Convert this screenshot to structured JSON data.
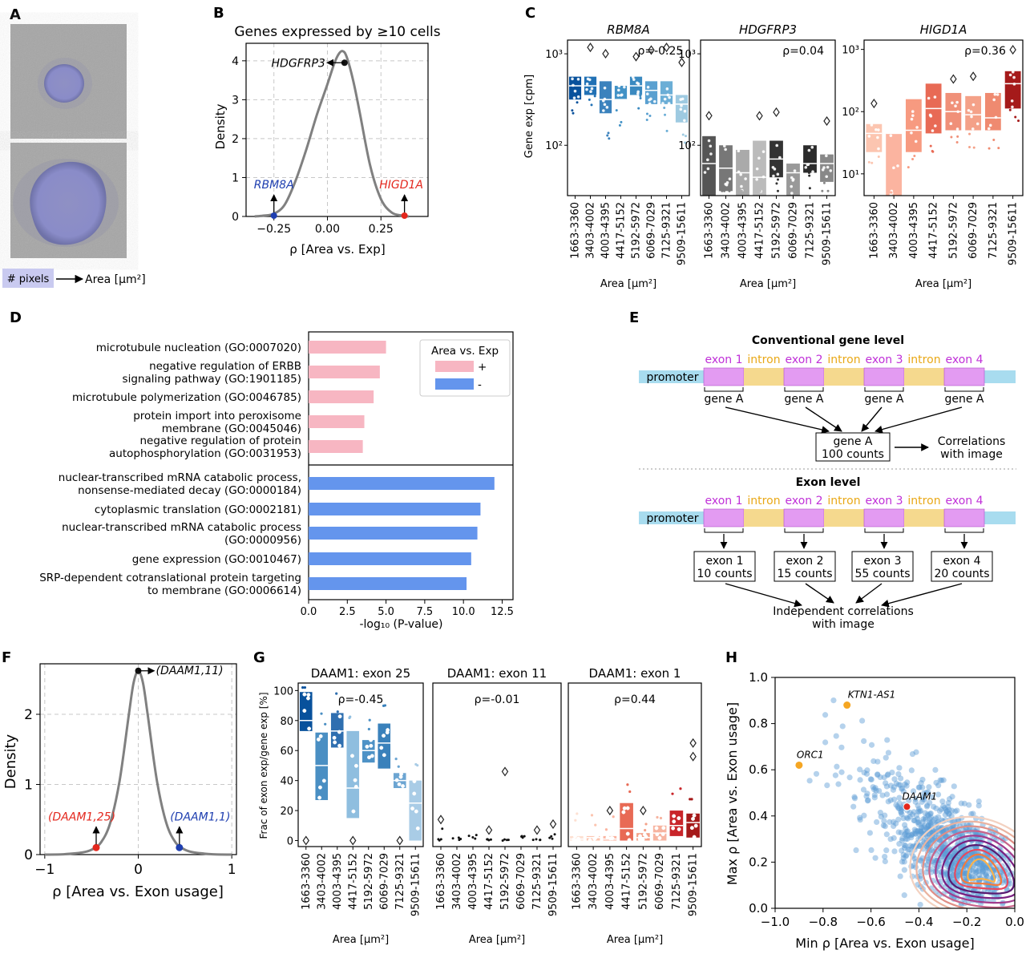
{
  "panel_labels": [
    "A",
    "B",
    "C",
    "D",
    "E",
    "F",
    "G",
    "H"
  ],
  "colors": {
    "rbm_blue": "#1f3fb0",
    "higd_red": "#e3271d",
    "pos_pink": "#f7b6c2",
    "neg_blue": "#6495ed",
    "exon_violet": "#e39bf2",
    "intron_yellow": "#f5d98e",
    "promoter_blue": "#a8dcef",
    "exon_label": "#c030d8",
    "intron_label": "#e9a817",
    "orange": "#f5a623"
  },
  "panel_a": {
    "legend_box": "# pixels",
    "legend_arrow_text": "Area [µm²]"
  },
  "panel_b": {
    "chart_data": {
      "type": "line",
      "title": "Genes expressed by ≥10 cells",
      "xlabel": "ρ [Area vs. Exp]",
      "ylabel": "Density",
      "xlim": [
        -0.38,
        0.47
      ],
      "ylim": [
        0,
        4.45
      ],
      "xticks": [
        -0.25,
        0.0,
        0.25
      ],
      "xtick_labels": [
        "−0.25",
        "0.00",
        "0.25"
      ],
      "yticks": [
        0,
        1,
        2,
        3,
        4
      ],
      "grid": true,
      "x": [
        -0.34,
        -0.3,
        -0.25,
        -0.2,
        -0.15,
        -0.1,
        -0.05,
        0.0,
        0.03,
        0.05,
        0.07,
        0.09,
        0.12,
        0.15,
        0.2,
        0.25,
        0.3,
        0.35,
        0.38
      ],
      "y": [
        0.0,
        0.02,
        0.07,
        0.3,
        0.9,
        1.7,
        2.6,
        3.4,
        3.9,
        4.15,
        4.25,
        4.1,
        3.5,
        2.7,
        1.3,
        0.45,
        0.1,
        0.02,
        0.0
      ],
      "annotations": [
        {
          "label": "HDGFRP3",
          "x": 0.05,
          "y": 3.95,
          "color": "#000000"
        },
        {
          "label": "RBM8A",
          "x": -0.25,
          "y": 0.0,
          "color": "#1f3fb0"
        },
        {
          "label": "HIGD1A",
          "x": 0.36,
          "y": 0.0,
          "color": "#e3271d"
        }
      ]
    }
  },
  "panel_c": {
    "ylabel": "Gene exp [cpm]",
    "xlabel": "Area [µm²]",
    "categories": [
      "1663-3360",
      "3403-4002",
      "4003-4395",
      "4417-5152",
      "5192-5972",
      "6069-7029",
      "7125-9321",
      "9509-15611"
    ],
    "ytick_labels": [
      "10¹",
      "10²",
      "10³"
    ],
    "chart_data": [
      {
        "type": "bar",
        "title": "RBM8A",
        "rho": "ρ=-0.25",
        "ylim_log": [
          1.45,
          3.15
        ],
        "lo": [
          2.5,
          2.55,
          2.35,
          2.5,
          2.55,
          2.45,
          2.45,
          2.25
        ],
        "hi": [
          2.75,
          2.75,
          2.7,
          2.65,
          2.75,
          2.7,
          2.7,
          2.55
        ],
        "median": [
          2.65,
          2.65,
          2.5,
          2.5,
          2.65,
          2.6,
          2.55,
          2.45
        ],
        "colors": [
          "#08519c",
          "#2171b5",
          "#3b82bd",
          "#4292c6",
          "#3a89c0",
          "#5aa0d0",
          "#6baed6",
          "#9ecae1"
        ]
      },
      {
        "type": "bar",
        "title": "HDGFRP3",
        "rho": "ρ=0.04",
        "ylim_log": [
          1.45,
          3.15
        ],
        "lo": [
          1.3,
          1.5,
          0.0,
          0.95,
          1.65,
          1.45,
          1.7,
          1.6
        ],
        "hi": [
          2.1,
          2.0,
          1.95,
          2.05,
          2.05,
          1.8,
          2.0,
          1.9
        ],
        "median": [
          1.8,
          1.75,
          1.7,
          1.65,
          1.85,
          1.7,
          1.8,
          1.8
        ],
        "colors": [
          "#555555",
          "#777777",
          "#aaaaaa",
          "#bbbbbb",
          "#333333",
          "#999999",
          "#2b2b2b",
          "#888888"
        ]
      },
      {
        "type": "bar",
        "title": "HIGD1A",
        "rho": "ρ=0.36",
        "ylim_log": [
          0.65,
          3.15
        ],
        "lo": [
          1.35,
          0.0,
          1.35,
          1.65,
          1.7,
          1.7,
          1.7,
          2.05
        ],
        "hi": [
          1.8,
          1.65,
          2.2,
          2.45,
          2.3,
          2.25,
          2.3,
          2.65
        ],
        "median": [
          1.65,
          1.65,
          1.7,
          2.05,
          2.0,
          1.95,
          1.9,
          2.45
        ],
        "colors": [
          "#fcc5b0",
          "#fbb4a0",
          "#f79a80",
          "#e86a55",
          "#f09079",
          "#f4a188",
          "#ef8a70",
          "#a51a1a"
        ]
      }
    ]
  },
  "panel_d": {
    "chart_data": {
      "type": "bar",
      "orientation": "horizontal",
      "xlabel": "-log₁₀ (P-value)",
      "xlim": [
        0,
        13.2
      ],
      "xticks": [
        0.0,
        2.5,
        5.0,
        7.5,
        10.0,
        12.5
      ],
      "xtick_labels": [
        "0.0",
        "2.5",
        "5.0",
        "7.5",
        "10.0",
        "12.5"
      ],
      "legend_title": "Area vs. Exp",
      "legend": [
        "+",
        "-"
      ],
      "positive": [
        {
          "label": [
            "microtubule nucleation (GO:0007020)"
          ],
          "value": 5.0
        },
        {
          "label": [
            "negative regulation of ERBB",
            "signaling pathway (GO:1901185)"
          ],
          "value": 4.6
        },
        {
          "label": [
            "microtubule polymerization (GO:0046785)"
          ],
          "value": 4.2
        },
        {
          "label": [
            "protein import into peroxisome",
            "membrane (GO:0045046)"
          ],
          "value": 3.6
        },
        {
          "label": [
            "negative regulation of protein",
            "autophosphorylation (GO:0031953)"
          ],
          "value": 3.5
        }
      ],
      "negative": [
        {
          "label": [
            "nuclear-transcribed mRNA catabolic process,",
            "nonsense-mediated decay (GO:0000184)"
          ],
          "value": 12.0
        },
        {
          "label": [
            "cytoplasmic translation (GO:0002181)"
          ],
          "value": 11.1
        },
        {
          "label": [
            "nuclear-transcribed mRNA catabolic process",
            "(GO:0000956)"
          ],
          "value": 10.9
        },
        {
          "label": [
            "gene expression (GO:0010467)"
          ],
          "value": 10.5
        },
        {
          "label": [
            "SRP-dependent cotranslational protein targeting",
            "to membrane (GO:0006614)"
          ],
          "value": 10.2
        }
      ]
    }
  },
  "panel_e": {
    "title_gene": "Conventional gene level",
    "title_exon": "Exon level",
    "promoter": "promoter",
    "exons": [
      "exon 1",
      "exon 2",
      "exon 3",
      "exon 4"
    ],
    "intron": "intron",
    "gene_label": "gene A",
    "gene_box": [
      "gene A",
      "100 counts"
    ],
    "gene_corr": [
      "Correlations",
      "with image"
    ],
    "exon_boxes": [
      [
        "exon 1",
        "10 counts"
      ],
      [
        "exon 2",
        "15 counts"
      ],
      [
        "exon 3",
        "55 counts"
      ],
      [
        "exon 4",
        "20 counts"
      ]
    ],
    "exon_corr": [
      "Independent correlations",
      "with image"
    ]
  },
  "panel_f": {
    "chart_data": {
      "type": "line",
      "xlabel": "ρ [Area vs. Exon usage]",
      "ylabel": "Density",
      "xlim": [
        -1.05,
        1.05
      ],
      "ylim": [
        0,
        2.72
      ],
      "xticks": [
        -1,
        0,
        1
      ],
      "xtick_labels": [
        "−1",
        "0",
        "1"
      ],
      "yticks": [
        0,
        1,
        2
      ],
      "grid": true,
      "x": [
        -1.0,
        -0.8,
        -0.6,
        -0.5,
        -0.4,
        -0.3,
        -0.2,
        -0.1,
        -0.05,
        0.0,
        0.05,
        0.1,
        0.2,
        0.3,
        0.4,
        0.5,
        0.6,
        0.8,
        1.0
      ],
      "y": [
        0.0,
        0.005,
        0.03,
        0.07,
        0.17,
        0.45,
        1.05,
        2.0,
        2.45,
        2.62,
        2.45,
        2.0,
        1.05,
        0.45,
        0.17,
        0.07,
        0.03,
        0.005,
        0.0
      ],
      "annotations": [
        {
          "label": "(DAAM1,11)",
          "x": 0.0,
          "y": 2.62,
          "color": "#000000"
        },
        {
          "label": "(DAAM1,25)",
          "x": -0.45,
          "y": 0.1,
          "color": "#e3271d"
        },
        {
          "label": "(DAAM1,1)",
          "x": 0.44,
          "y": 0.1,
          "color": "#1f3fb0"
        }
      ]
    }
  },
  "panel_g": {
    "ylabel": "Frac of exon exp/gene exp [%]",
    "xlabel": "Area [µm²]",
    "categories": [
      "1663-3360",
      "3403-4002",
      "4003-4395",
      "4417-5152",
      "5192-5972",
      "6069-7029",
      "7125-9321",
      "9509-15611"
    ],
    "yticks": [
      0,
      20,
      40,
      60,
      80,
      100
    ],
    "chart_data": [
      {
        "type": "bar",
        "title": "DAAM1: exon 25",
        "rho": "ρ=-0.45",
        "ylim": [
          -4,
          105
        ],
        "lo": [
          73,
          27,
          62,
          15,
          52,
          48,
          35,
          0
        ],
        "hi": [
          99,
          72,
          85,
          73,
          67,
          78,
          45,
          40
        ],
        "median": [
          80,
          50,
          73,
          35,
          60,
          65,
          40,
          25
        ],
        "colors": [
          "#08519c",
          "#4a8fc3",
          "#2f6fb0",
          "#8fbedf",
          "#4e92c6",
          "#3a81bb",
          "#6ca5d2",
          "#a9cce6"
        ]
      },
      {
        "type": "bar",
        "title": "DAAM1: exon 11",
        "rho": "ρ=-0.01",
        "ylim": [
          -4,
          105
        ],
        "lo": [
          0,
          0,
          0,
          0,
          0,
          0,
          0,
          0
        ],
        "hi": [
          0,
          0,
          0,
          0,
          0,
          0,
          0,
          0
        ],
        "median": [
          8,
          2,
          4,
          1,
          1,
          3,
          1,
          5
        ],
        "colors": [
          "#000000",
          "#000000",
          "#000000",
          "#000000",
          "#000000",
          "#000000",
          "#000000",
          "#000000"
        ]
      },
      {
        "type": "bar",
        "title": "DAAM1: exon 1",
        "rho": "ρ=0.44",
        "ylim": [
          -4,
          105
        ],
        "lo": [
          0,
          0,
          0,
          0,
          0,
          0,
          3,
          2
        ],
        "hi": [
          3,
          3,
          3,
          25,
          5,
          10,
          20,
          18
        ],
        "median": [
          1,
          2,
          1,
          8,
          2,
          5,
          10,
          12
        ],
        "colors": [
          "#fde0d2",
          "#fcc5b0",
          "#fbb4a0",
          "#e86a55",
          "#f4a188",
          "#f7b4a0",
          "#c9252a",
          "#a51a1a"
        ]
      }
    ]
  },
  "panel_h": {
    "chart_data": {
      "type": "scatter",
      "xlabel": "Min ρ [Area vs. Exon usage]",
      "ylabel": "Max ρ [Area vs. Exon usage]",
      "xlim": [
        -1.0,
        0.0
      ],
      "ylim": [
        0.0,
        1.0
      ],
      "xticks": [
        -1.0,
        -0.8,
        -0.6,
        -0.4,
        -0.2,
        0.0
      ],
      "xtick_labels": [
        "−1.0",
        "−0.8",
        "−0.6",
        "−0.4",
        "−0.2",
        "0.0"
      ],
      "yticks": [
        0.0,
        0.2,
        0.4,
        0.6,
        0.8,
        1.0
      ],
      "ytick_labels": [
        "0.0",
        "0.2",
        "0.4",
        "0.6",
        "0.8",
        "1.0"
      ],
      "highlight": [
        {
          "label": "KTN1-AS1",
          "x": -0.7,
          "y": 0.88,
          "color": "#f5a623"
        },
        {
          "label": "ORC1",
          "x": -0.9,
          "y": 0.62,
          "color": "#f5a623"
        },
        {
          "label": "DAAM1",
          "x": -0.45,
          "y": 0.44,
          "color": "#e3271d"
        }
      ]
    }
  }
}
